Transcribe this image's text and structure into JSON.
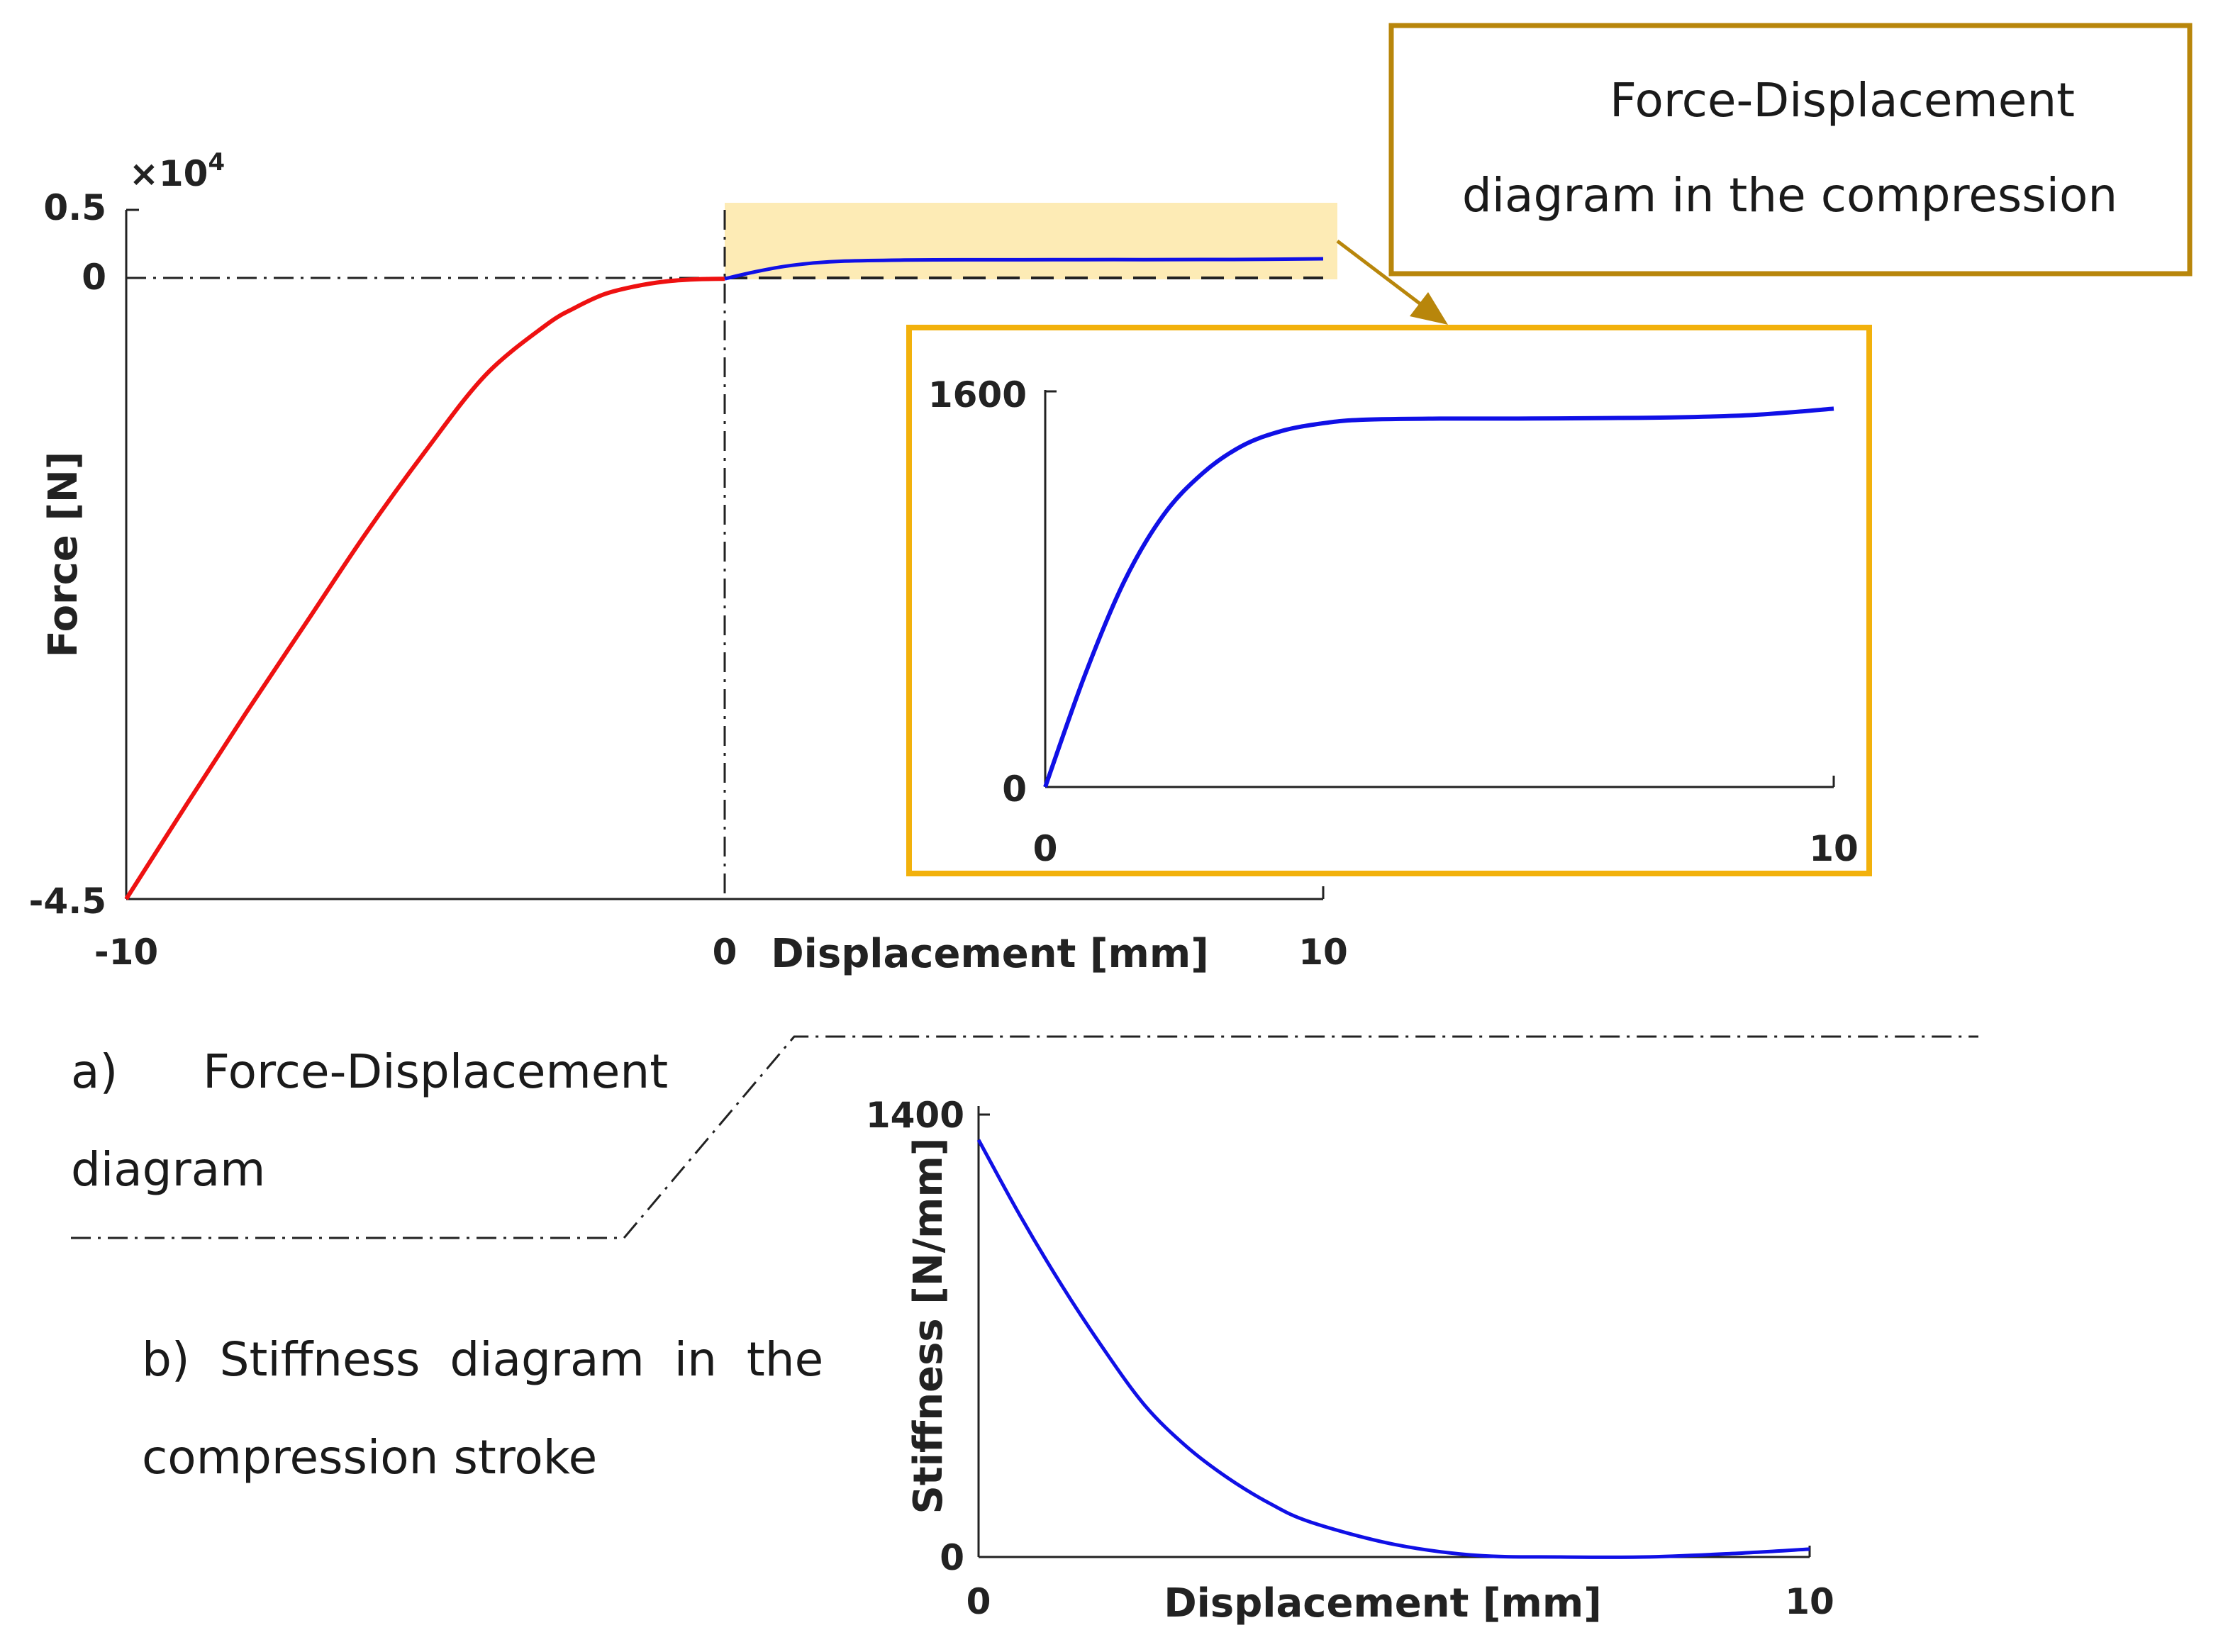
{
  "callout": {
    "line1": "Force-Displacement",
    "line2": "diagram in the compression",
    "border_color": "#b8860b"
  },
  "caption_a": {
    "line1_prefix": "a)",
    "line1_text": "Force-Displacement",
    "line2": "diagram"
  },
  "caption_b": {
    "line1": "b)  Stiffness  diagram  in  the",
    "line2": "compression stroke"
  },
  "colors": {
    "red_series": "#ee1111",
    "blue_series": "#1010e6",
    "highlight": "#fdebb5",
    "inset_border": "#f2b10c"
  },
  "chart_data": [
    {
      "id": "force-displacement",
      "type": "line",
      "xlabel": "Displacement [mm]",
      "ylabel": "Force [N]",
      "y_multiplier": "×10",
      "y_multiplier_exp": "4",
      "xlim": [
        -10,
        10
      ],
      "ylim": [
        -4.5,
        0.5
      ],
      "x_ticks": [
        "-10",
        "0",
        "10"
      ],
      "y_ticks": [
        "0.5",
        "0",
        "-4.5"
      ],
      "series": [
        {
          "color": "#ee1111",
          "x": [
            -10,
            -9,
            -8,
            -7,
            -6,
            -5,
            -4,
            -3,
            -2.5,
            -2,
            -1.5,
            -1,
            -0.5,
            0
          ],
          "y": [
            -4.5,
            -3.82,
            -3.15,
            -2.5,
            -1.85,
            -1.25,
            -0.7,
            -0.34,
            -0.21,
            -0.11,
            -0.055,
            -0.02,
            -0.004,
            0
          ]
        },
        {
          "color": "#1010e6",
          "x": [
            0,
            0.5,
            1,
            1.5,
            2,
            3,
            4,
            5,
            6,
            7,
            8,
            9,
            10
          ],
          "y": [
            0,
            0.05,
            0.09,
            0.115,
            0.128,
            0.136,
            0.138,
            0.138,
            0.139,
            0.139,
            0.14,
            0.141,
            0.145
          ]
        }
      ]
    },
    {
      "id": "force-inset",
      "type": "line",
      "xlim": [
        0,
        10
      ],
      "ylim": [
        0,
        1600
      ],
      "x_ticks": [
        "0",
        "10"
      ],
      "y_ticks": [
        "1600",
        "0"
      ],
      "series": [
        {
          "color": "#1010e6",
          "x": [
            0,
            0.5,
            1,
            1.5,
            2,
            2.5,
            3,
            3.5,
            4,
            5,
            6,
            7,
            8,
            9,
            10
          ],
          "y": [
            0,
            450,
            830,
            1100,
            1270,
            1380,
            1440,
            1470,
            1485,
            1490,
            1490,
            1492,
            1495,
            1505,
            1530
          ]
        }
      ]
    },
    {
      "id": "stiffness",
      "type": "line",
      "xlabel": "Displacement [mm]",
      "ylabel": "Stiffness [N/mm]",
      "xlim": [
        0,
        10
      ],
      "ylim": [
        0,
        1400
      ],
      "x_ticks": [
        "0",
        "10"
      ],
      "y_ticks": [
        "1400",
        "0"
      ],
      "series": [
        {
          "color": "#1010e6",
          "x": [
            0,
            0.5,
            1,
            1.5,
            2,
            2.5,
            3,
            3.5,
            4,
            5,
            6,
            7,
            8,
            9,
            10
          ],
          "y": [
            1320,
            1080,
            860,
            660,
            480,
            350,
            250,
            170,
            110,
            40,
            5,
            0,
            0,
            10,
            25
          ]
        }
      ]
    }
  ]
}
